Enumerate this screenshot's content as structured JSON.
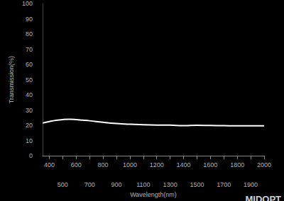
{
  "chart_data": {
    "type": "line",
    "x_label": "Wavelength(nm)",
    "y_label": "Transmission(%)",
    "annotations": [
      "MIDOPT"
    ],
    "x": [
      350,
      400,
      450,
      500,
      550,
      600,
      650,
      700,
      800,
      900,
      1000,
      1100,
      1200,
      1300,
      1400,
      1500,
      1600,
      1700,
      1800,
      1900,
      2000
    ],
    "values": [
      21.5,
      22.5,
      23.3,
      23.8,
      24.0,
      23.8,
      23.4,
      23.0,
      22.0,
      21.2,
      20.7,
      20.4,
      20.2,
      20.1,
      19.8,
      20.0,
      19.9,
      19.8,
      19.7,
      19.7,
      19.7
    ],
    "color": "#ffffff",
    "xlim": [
      350,
      2000
    ],
    "xticks": [
      400,
      500,
      600,
      700,
      800,
      900,
      1000,
      1100,
      1200,
      1300,
      1400,
      1500,
      1600,
      1700,
      1800,
      1900,
      2000
    ],
    "ylim": [
      0,
      100
    ],
    "yticks": [
      0,
      10,
      20,
      30,
      40,
      50,
      60,
      70,
      80,
      90,
      100
    ],
    "grid": false
  }
}
